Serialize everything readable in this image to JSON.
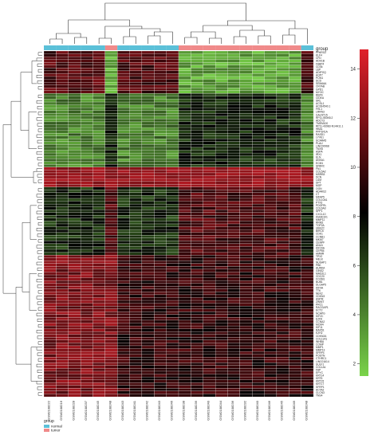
{
  "chart_data": {
    "type": "heatmap",
    "title": "",
    "xlabel": "",
    "ylabel": "",
    "annotation": {
      "title": "group",
      "legend": [
        {
          "label": "normal",
          "color": "#5bc0d8"
        },
        {
          "label": "tumor",
          "color": "#f08a8a"
        }
      ],
      "sample_groups": [
        "normal",
        "normal",
        "normal",
        "normal",
        "normal",
        "tumor",
        "normal",
        "normal",
        "normal",
        "normal",
        "normal",
        "tumor",
        "tumor",
        "tumor",
        "tumor",
        "tumor",
        "tumor",
        "tumor",
        "tumor",
        "tumor",
        "tumor",
        "normal"
      ]
    },
    "columns": [
      "GSM2108222",
      "GSM2108216",
      "GSM2108228",
      "GSM2108237",
      "GSM2108245",
      "GSM2108248",
      "GSM2108243",
      "GSM2108241",
      "GSM2108242",
      "GSM2108243",
      "GSM2108246",
      "GSM2108238",
      "GSM2108239",
      "GSM2108240",
      "GSM2108244",
      "GSM2108236",
      "GSM2108232",
      "GSM2108240",
      "GSM2108246",
      "GSM2108245",
      "GSM2108249",
      "GSM2108248"
    ],
    "rows": [
      "PPARG2",
      "KLF4",
      "CFD",
      "ADH1B",
      "FABP4",
      "CD36",
      "LEP",
      "ADIPOQ",
      "AQP7",
      "PLIN1",
      "SCD",
      "SEMA6A",
      "CRYAB",
      "GPD1",
      "MYOC",
      "RBP4",
      "CIDEA",
      "SRL",
      "ACSL1",
      "AC004540.1",
      "FHL1",
      "LRRN3",
      "GALNT15",
      "RP11-553K8.2",
      "ADCY3",
      "TMEM100",
      "RP11-430B3-N14H11.1",
      "HBA1",
      "PPP1R1A",
      "RASD1",
      "LYVE1",
      "SCARA5",
      "PLAU",
      "LINC00968",
      "TNXB",
      "ASPA",
      "IRX1",
      "ELN",
      "ANXA1",
      "ECM1",
      "SPARC",
      "FN1",
      "COL5A2",
      "MSRB3",
      "DCN",
      "LUM",
      "DPT",
      "MGP",
      "OGN",
      "ADAM12",
      "C7",
      "MFAP5",
      "COL10A1",
      "PTX3",
      "PDGFRL",
      "COL6A3",
      "SPP1",
      "CXCL10",
      "KIAA0101",
      "MMP11",
      "RRM2",
      "TOP2A",
      "UBE2C",
      "BIRC5",
      "CDK1",
      "CCNB1",
      "MKI67",
      "CENPF",
      "ANLN",
      "KIF20A",
      "CEP55",
      "HMMR",
      "TPX2",
      "MELK",
      "NUSAP1",
      "PBK",
      "AURKA",
      "GINS2",
      "MAD2L1",
      "CDC20",
      "FOXM1",
      "BUB1",
      "DLGAP5",
      "KIF4A",
      "TTK",
      "NEK2",
      "CDKN3",
      "ASPM",
      "ZWINT",
      "PRC1",
      "RACGAP1",
      "ECT2",
      "NCAPG",
      "KIF2C",
      "E2F8",
      "CCNA2",
      "MCM4",
      "KIF11",
      "RAD51",
      "EZH2",
      "CDKN2A",
      "COL11A1",
      "INHBA",
      "COMP",
      "MMP1",
      "MMP13",
      "SFRP4",
      "POSTN",
      "CTHRC1",
      "LINC01614",
      "SULF1",
      "COL1A1",
      "FAP",
      "EPYC",
      "KRT14",
      "KRT5",
      "KRT15",
      "KRT17",
      "SFRP1",
      "ACTA2",
      "CLCN3",
      "TNS4"
    ],
    "clusters": {
      "row_breaks": [
        {
          "from": 0,
          "to": 15,
          "pattern": "high_normal_low_tumor"
        },
        {
          "from": 15,
          "to": 41,
          "pattern": "mixed_low"
        },
        {
          "from": 41,
          "to": 48,
          "pattern": "very_high"
        },
        {
          "from": 48,
          "to": 72,
          "pattern": "low_normal_high_tumor"
        },
        {
          "from": 72,
          "to": 122,
          "pattern": "high_mixed"
        }
      ]
    },
    "color_scale": {
      "range": [
        1.5,
        14.8
      ],
      "ticks": [
        2,
        4,
        6,
        8,
        10,
        12,
        14
      ],
      "colors": [
        "#7ad34a",
        "#000000",
        "#e0202a"
      ]
    }
  }
}
